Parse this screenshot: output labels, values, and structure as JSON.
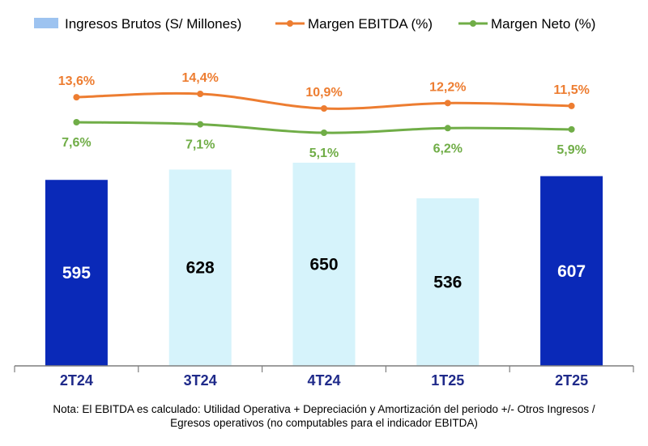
{
  "chart_data": {
    "type": "bar",
    "categories": [
      "2T24",
      "3T24",
      "4T24",
      "1T25",
      "2T25"
    ],
    "series": [
      {
        "name": "Ingresos Brutos (S/ Millones)",
        "kind": "bar",
        "values": [
          595,
          628,
          650,
          536,
          607
        ]
      },
      {
        "name": "Margen EBITDA (%)",
        "kind": "line",
        "values": [
          13.6,
          14.4,
          10.9,
          12.2,
          11.5
        ],
        "labels": [
          "13,6%",
          "14,4%",
          "10,9%",
          "12,2%",
          "11,5%"
        ]
      },
      {
        "name": "Margen Neto (%)",
        "kind": "line",
        "values": [
          7.6,
          7.1,
          5.1,
          6.2,
          5.9
        ],
        "labels": [
          "7,6%",
          "7,1%",
          "5,1%",
          "6,2%",
          "5,9%"
        ]
      }
    ],
    "bar_colors": [
      "#0a29b8",
      "#d6f3fb",
      "#d6f3fb",
      "#d6f3fb",
      "#0a29b8"
    ],
    "bar_label_colors": [
      "#ffffff",
      "#000000",
      "#000000",
      "#000000",
      "#ffffff"
    ],
    "legend_placement": "top",
    "colors": {
      "ebitda": "#ed7d31",
      "neto": "#70ad47",
      "bar_light": "#d6f3fb",
      "bar_dark": "#0a29b8",
      "legend_bar": "#9dc3f0"
    },
    "grid": false
  },
  "legend": {
    "bars": "Ingresos Brutos (S/ Millones)",
    "ebitda": "Margen EBITDA (%)",
    "neto": "Margen Neto (%)"
  },
  "note": "Nota: El EBITDA es calculado: Utilidad Operativa + Depreciación y Amortización del periodo +/- Otros Ingresos / Egresos operativos (no computables para el indicador EBITDA)"
}
